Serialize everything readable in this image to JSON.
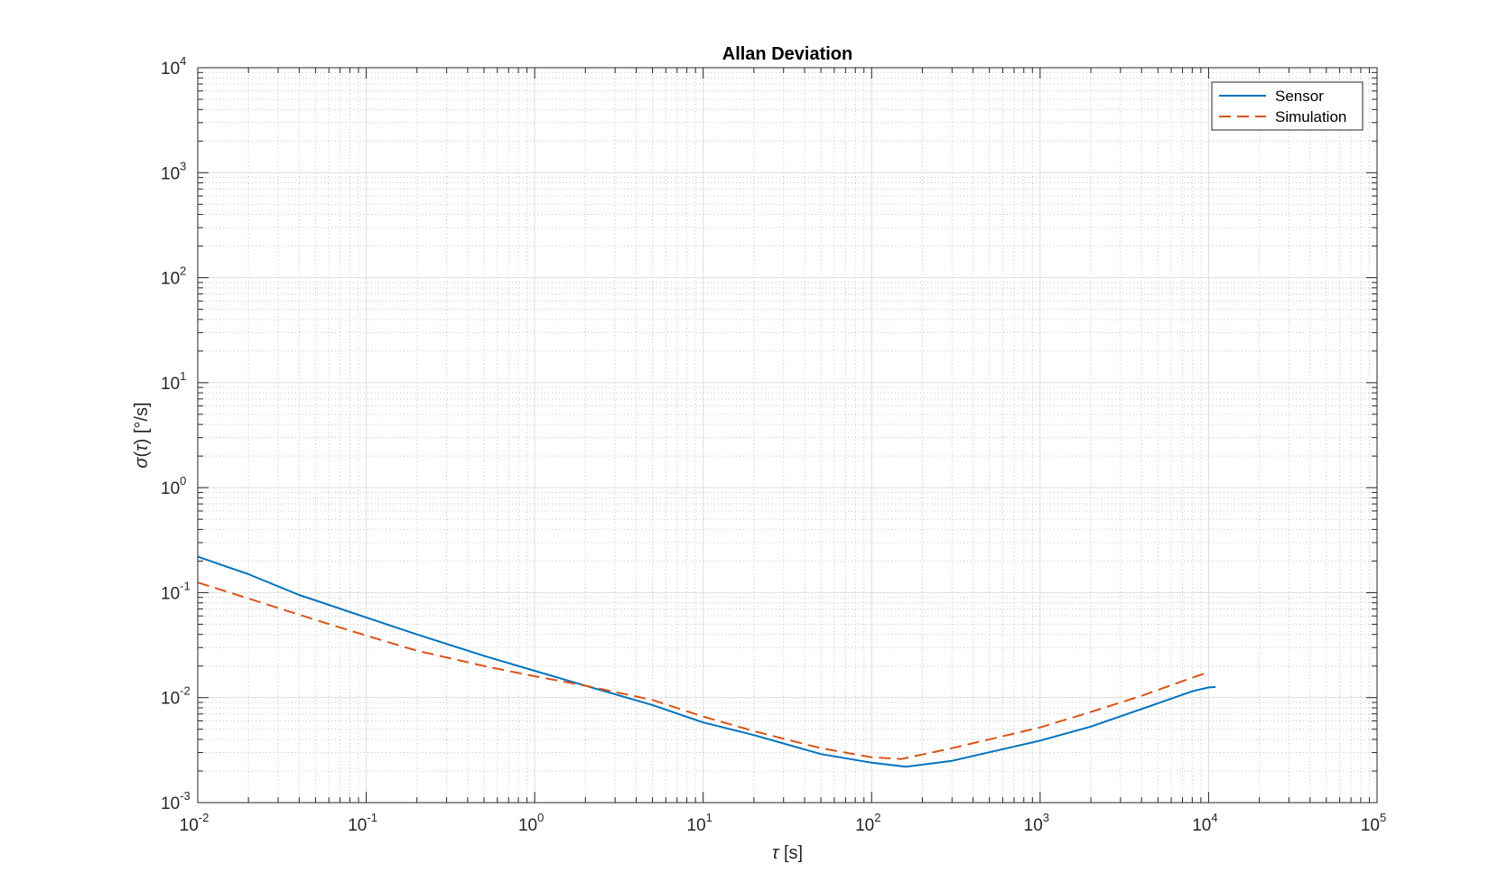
{
  "chart_data": {
    "type": "line",
    "title": "Allan Deviation",
    "xlabel": "τ [s]",
    "ylabel": "σ(τ) [°/s]",
    "xscale": "log",
    "yscale": "log",
    "xlim": [
      0.01,
      100000
    ],
    "ylim": [
      0.001,
      10000
    ],
    "grid": "on",
    "minor_grid": "on",
    "legend_position": "top-right",
    "x_tick_labels": [
      {
        "base": "10",
        "exp": "-2"
      },
      {
        "base": "10",
        "exp": "-1"
      },
      {
        "base": "10",
        "exp": "0"
      },
      {
        "base": "10",
        "exp": "1"
      },
      {
        "base": "10",
        "exp": "2"
      },
      {
        "base": "10",
        "exp": "3"
      },
      {
        "base": "10",
        "exp": "4"
      },
      {
        "base": "10",
        "exp": "5"
      }
    ],
    "y_tick_labels": [
      {
        "base": "10",
        "exp": "-3"
      },
      {
        "base": "10",
        "exp": "-2"
      },
      {
        "base": "10",
        "exp": "-1"
      },
      {
        "base": "10",
        "exp": "0"
      },
      {
        "base": "10",
        "exp": "1"
      },
      {
        "base": "10",
        "exp": "2"
      },
      {
        "base": "10",
        "exp": "3"
      },
      {
        "base": "10",
        "exp": "4"
      }
    ],
    "series": [
      {
        "name": "Sensor",
        "color": "#0072bd",
        "style": "solid",
        "x": [
          0.01,
          0.02,
          0.04,
          0.1,
          0.2,
          0.5,
          1,
          2,
          5,
          10,
          20,
          50,
          100,
          160,
          300,
          1000,
          2000,
          4000,
          8000,
          10000,
          11000
        ],
        "y": [
          0.22,
          0.15,
          0.095,
          0.058,
          0.04,
          0.025,
          0.018,
          0.013,
          0.0085,
          0.0058,
          0.0044,
          0.0029,
          0.0024,
          0.0022,
          0.0025,
          0.0039,
          0.0053,
          0.0078,
          0.0115,
          0.0125,
          0.0126
        ]
      },
      {
        "name": "Simulation",
        "color": "#d95319",
        "style": "dashed",
        "x": [
          0.01,
          0.02,
          0.05,
          0.1,
          0.2,
          0.5,
          1,
          2,
          5,
          10,
          20,
          50,
          100,
          150,
          300,
          1000,
          2000,
          4000,
          8000,
          10000
        ],
        "y": [
          0.125,
          0.088,
          0.055,
          0.039,
          0.028,
          0.02,
          0.016,
          0.013,
          0.0095,
          0.0066,
          0.0048,
          0.0033,
          0.0027,
          0.0026,
          0.0033,
          0.0052,
          0.0073,
          0.0104,
          0.0155,
          0.0175
        ]
      }
    ]
  }
}
